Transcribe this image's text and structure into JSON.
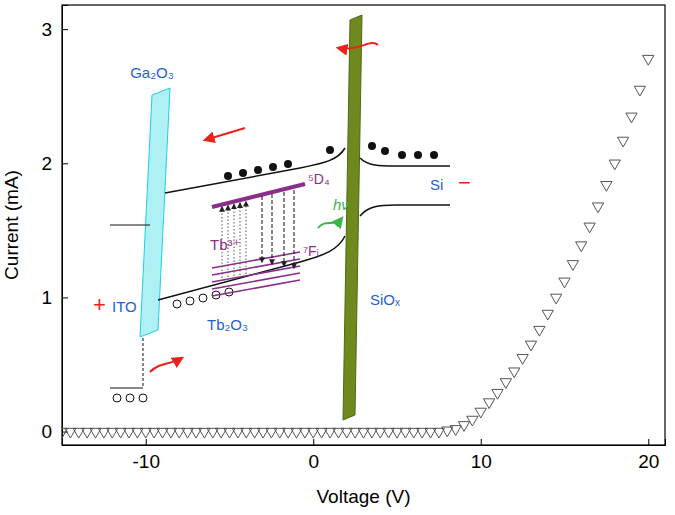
{
  "chart_data": {
    "type": "scatter",
    "x_label": "Voltage (V)",
    "y_label": "Current (mA)",
    "xlim": [
      -15,
      21
    ],
    "xticks": [
      -10,
      0,
      10,
      20
    ],
    "ylim": [
      -0.1,
      3.18
    ],
    "yticks": [
      0,
      1,
      2,
      3
    ],
    "marker": "triangle-down",
    "color": "#555555",
    "x": [
      -15,
      -14.5,
      -14,
      -13.5,
      -13,
      -12.5,
      -12,
      -11.5,
      -11,
      -10.5,
      -10,
      -9.5,
      -9,
      -8.5,
      -8,
      -7.5,
      -7,
      -6.5,
      -6,
      -5.5,
      -5,
      -4.5,
      -4,
      -3.5,
      -3,
      -2.5,
      -2,
      -1.5,
      -1,
      -0.5,
      0,
      0.5,
      1,
      1.5,
      2,
      2.5,
      3,
      3.5,
      4,
      4.5,
      5,
      5.5,
      6,
      6.5,
      7,
      7.5,
      8,
      8.5,
      9,
      9.5,
      10,
      10.5,
      11,
      11.5,
      12,
      12.5,
      13,
      13.5,
      14,
      14.5,
      15,
      15.5,
      16,
      16.5,
      17,
      17.5,
      18,
      18.5,
      19,
      19.5,
      20
    ],
    "values": [
      0,
      0,
      0,
      0,
      0,
      0,
      0,
      0,
      0,
      0,
      0,
      0,
      0,
      0,
      0,
      0,
      0,
      0,
      0,
      0,
      0,
      0,
      0,
      0,
      0,
      0,
      0,
      0,
      0,
      0,
      0,
      0,
      0,
      0,
      0,
      0,
      0,
      0,
      0,
      0,
      0,
      0,
      0,
      0,
      0,
      0,
      0.01,
      0.02,
      0.05,
      0.09,
      0.15,
      0.22,
      0.29,
      0.37,
      0.45,
      0.55,
      0.65,
      0.76,
      0.88,
      1.0,
      1.12,
      1.25,
      1.39,
      1.53,
      1.68,
      1.84,
      2.0,
      2.17,
      2.35,
      2.55,
      2.78
    ],
    "annotations": [
      "Ga₂O₃",
      "Tb³⁺",
      "⁵D₄",
      "hν",
      "Si",
      "−",
      "+",
      "ITO",
      "Tb₂O₃",
      "SiOₓ",
      "⁷Fⱼ"
    ]
  }
}
